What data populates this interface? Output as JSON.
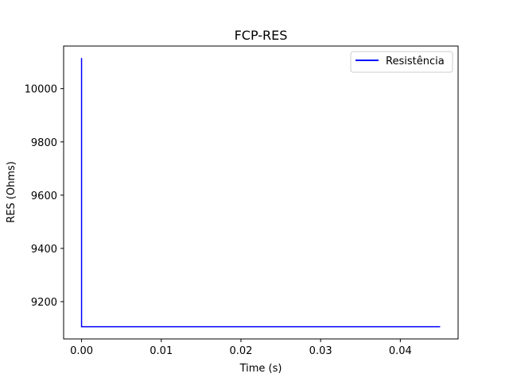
{
  "chart_data": {
    "type": "line",
    "title": "FCP-RES",
    "xlabel": "Time (s)",
    "ylabel": "RES (Ohms)",
    "xlim": [
      -0.00225,
      0.04725
    ],
    "ylim": [
      9060,
      10160
    ],
    "xticks": [
      0.0,
      0.01,
      0.02,
      0.03,
      0.04
    ],
    "xtick_labels": [
      "0.00",
      "0.01",
      "0.02",
      "0.03",
      "0.04"
    ],
    "yticks": [
      9200,
      9400,
      9600,
      9800,
      10000
    ],
    "ytick_labels": [
      "9200",
      "9400",
      "9600",
      "9800",
      "10000"
    ],
    "grid": false,
    "legend_position": "top-right",
    "series": [
      {
        "name": "Resistência",
        "color": "#0000ff",
        "x": [
          0.0,
          0.0,
          0.045
        ],
        "y": [
          10115,
          9106,
          9106
        ]
      }
    ]
  }
}
